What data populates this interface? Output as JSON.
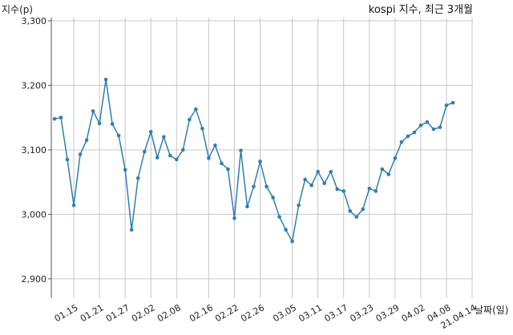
{
  "chart_data": {
    "type": "line",
    "title": "kospi 지수, 최근 3개월",
    "xlabel": "날짜(일)",
    "ylabel": "지수(p)",
    "ylim": [
      2870,
      3305
    ],
    "yticks": [
      "3,300",
      "3,200",
      "3,100",
      "3,000",
      "2,900"
    ],
    "ytick_values": [
      3300,
      3200,
      3100,
      3000,
      2900
    ],
    "xticks": [
      "01.15",
      "01.21",
      "01.27",
      "02.02",
      "02.08",
      "02.16",
      "02.22",
      "02.26",
      "03.05",
      "03.11",
      "03.17",
      "03.23",
      "03.29",
      "04.02",
      "04.08",
      "21.04.14"
    ],
    "xtick_index": [
      3,
      7,
      11,
      15,
      19,
      24,
      28,
      32,
      37,
      41,
      45,
      49,
      53,
      57,
      61,
      65
    ],
    "grid": true,
    "color": "#2e7fb0",
    "values": [
      3148,
      3150,
      3085,
      3014,
      3093,
      3115,
      3160,
      3141,
      3209,
      3140,
      3122,
      3069,
      2976,
      3056,
      3097,
      3128,
      3088,
      3120,
      3091,
      3085,
      3100,
      3147,
      3163,
      3133,
      3087,
      3107,
      3079,
      3070,
      2994,
      3099,
      3012,
      3043,
      3082,
      3043,
      3026,
      2996,
      2976,
      2958,
      3014,
      3054,
      3045,
      3066,
      3048,
      3066,
      3039,
      3036,
      3005,
      2996,
      3008,
      3040,
      3036,
      3070,
      3062,
      3087,
      3112,
      3121,
      3127,
      3138,
      3143,
      3132,
      3135,
      3169,
      3173
    ]
  }
}
